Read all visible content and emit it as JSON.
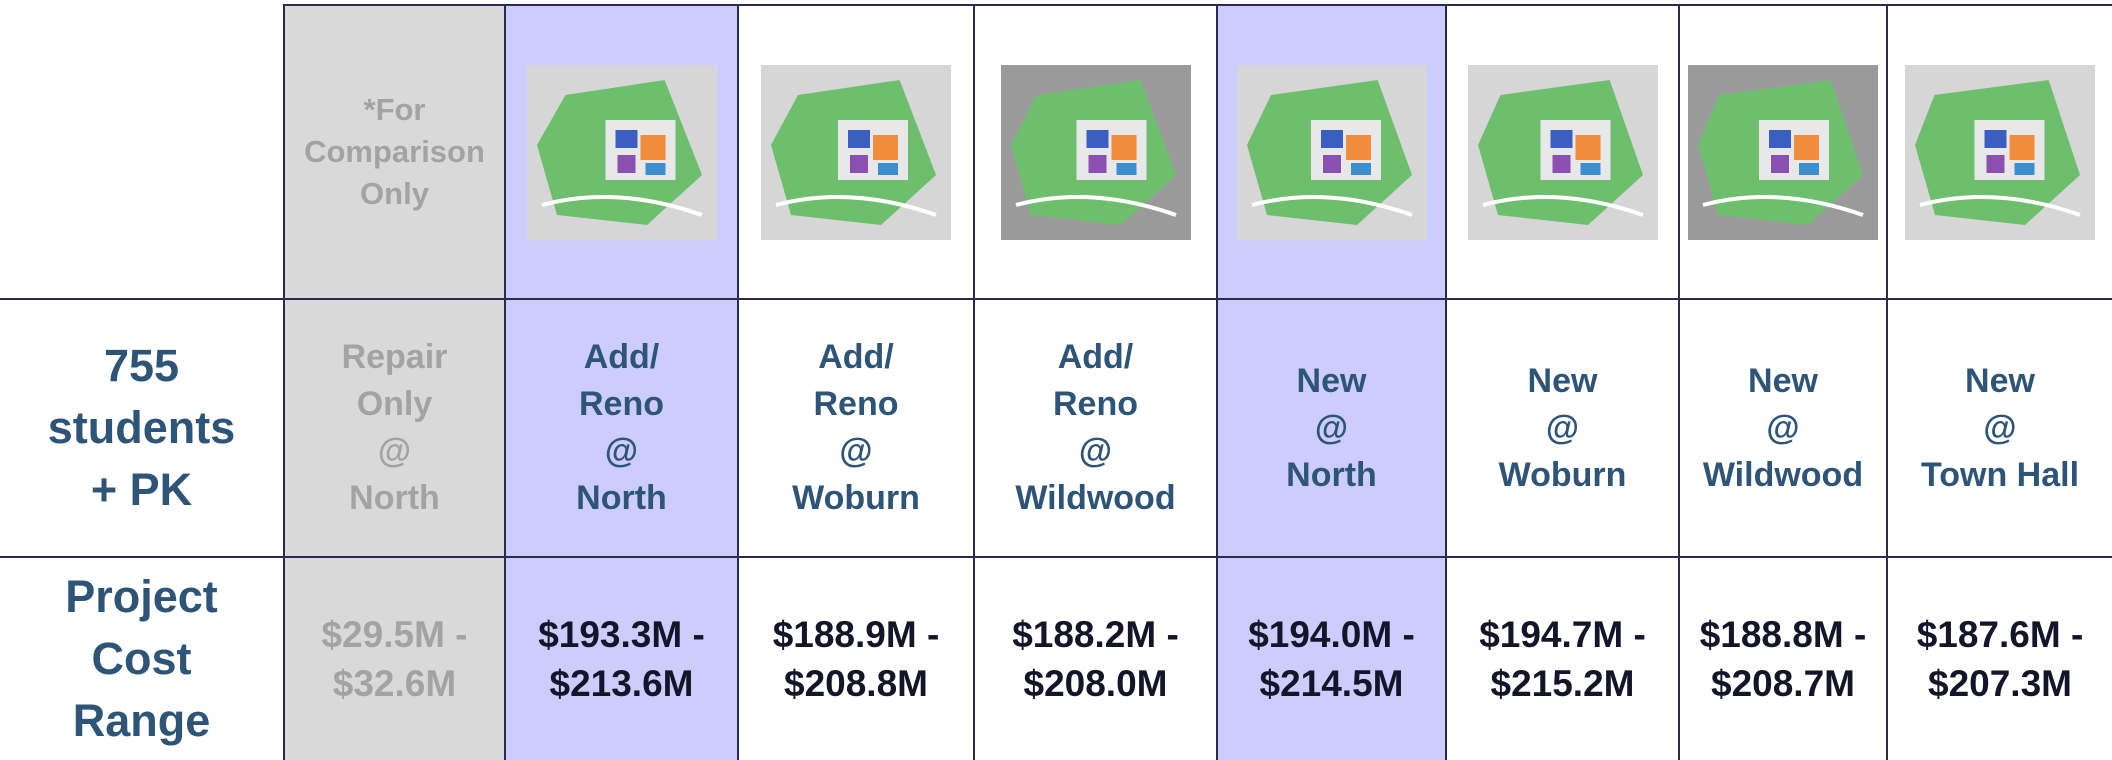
{
  "header": {
    "note": [
      "*For",
      "Comparison",
      "Only"
    ]
  },
  "rows": [
    {
      "label": [
        "755",
        "students",
        "+ PK"
      ],
      "cells": [
        [
          "Repair",
          "Only",
          "@",
          "North"
        ],
        [
          "Add/",
          "Reno",
          "@",
          "North"
        ],
        [
          "Add/",
          "Reno",
          "@",
          "Woburn"
        ],
        [
          "Add/",
          "Reno",
          "@",
          "Wildwood"
        ],
        [
          "New",
          "@",
          "North"
        ],
        [
          "New",
          "@",
          "Woburn"
        ],
        [
          "New",
          "@",
          "Wildwood"
        ],
        [
          "New",
          "@",
          "Town Hall"
        ]
      ]
    },
    {
      "label": [
        "Project",
        "Cost",
        "Range"
      ],
      "cells": [
        [
          "$29.5M -",
          "$32.6M"
        ],
        [
          "$193.3M -",
          "$213.6M"
        ],
        [
          "$188.9M -",
          "$208.8M"
        ],
        [
          "$188.2M -",
          "$208.0M"
        ],
        [
          "$194.0M -",
          "$214.5M"
        ],
        [
          "$194.7M -",
          "$215.2M"
        ],
        [
          "$188.8M -",
          "$208.7M"
        ],
        [
          "$187.6M -",
          "$207.3M"
        ]
      ]
    }
  ]
}
